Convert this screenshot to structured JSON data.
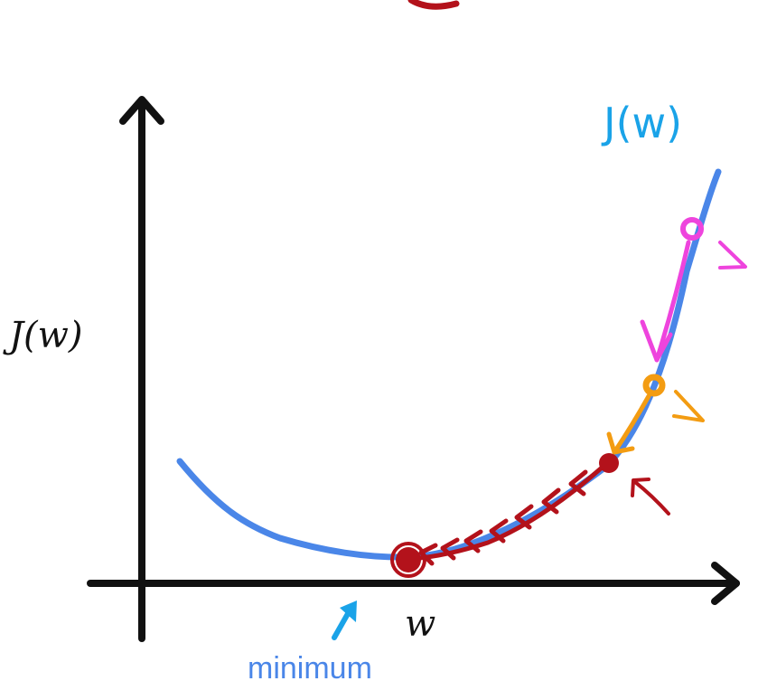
{
  "diagram": {
    "y_axis_label": "J(w)",
    "x_axis_label": "w",
    "curve_label": "J(w)",
    "minimum_label": "minimum"
  },
  "colors": {
    "axis": "#111111",
    "curve": "#4a86e8",
    "curve_label": "#1aa3e8",
    "minimum_label": "#4a86e8",
    "minimum_arrow": "#1aa3e8",
    "step_pink": "#ee44dd",
    "step_orange": "#f39c12",
    "step_red": "#b3121b"
  }
}
